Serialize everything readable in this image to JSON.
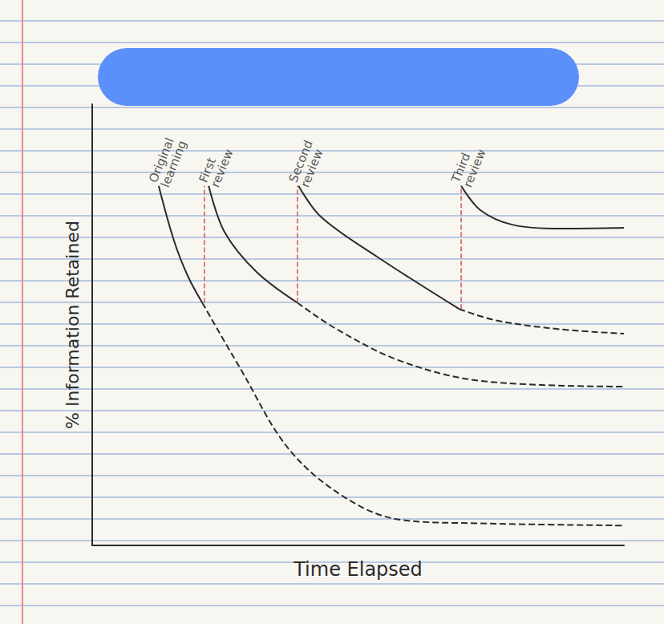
{
  "chart_data": {
    "type": "line",
    "x_label": "Time Elapsed",
    "y_label": "% Information Retained",
    "xlim": [
      0,
      100
    ],
    "ylim": [
      0,
      100
    ],
    "tick_labels": false,
    "grid": false,
    "series": [
      {
        "color": "#2b2b2b",
        "line_style": "solid",
        "x": [
          12.5,
          15.4,
          18,
          20.7
        ],
        "values": [
          81.5,
          69,
          61,
          55
        ]
      },
      {
        "color": "#2b2b2b",
        "line_style": "dashed",
        "x": [
          20.7,
          27.9,
          37,
          47.5,
          58,
          73,
          100
        ],
        "values": [
          55,
          40,
          21.8,
          10.9,
          5.8,
          5,
          4.5
        ]
      },
      {
        "color": "#2b2b2b",
        "line_style": "solid",
        "x": [
          21.9,
          24.9,
          30.9,
          38.6
        ],
        "values": [
          81.5,
          71,
          62,
          55
        ]
      },
      {
        "color": "#2b2b2b",
        "line_style": "dashed",
        "x": [
          38.6,
          46,
          58,
          73,
          100
        ],
        "values": [
          55,
          49,
          41.8,
          37.3,
          36
        ]
      },
      {
        "color": "#2b2b2b",
        "line_style": "solid",
        "x": [
          38.8,
          43,
          53.5,
          69
        ],
        "values": [
          81.5,
          74.5,
          65.5,
          53.6
        ]
      },
      {
        "color": "#2b2b2b",
        "line_style": "dashed",
        "x": [
          69,
          76,
          88,
          100
        ],
        "values": [
          53.6,
          51,
          49,
          48
        ]
      },
      {
        "color": "#2b2b2b",
        "line_style": "solid",
        "x": [
          69.4,
          73,
          79,
          88,
          100
        ],
        "values": [
          81.5,
          76,
          72.7,
          71.8,
          72
        ]
      }
    ],
    "review_lines": {
      "color": "#d9534f",
      "line_style": "dashed",
      "lines": [
        {
          "x": 21.1,
          "y_from": 55,
          "y_to": 81.5
        },
        {
          "x": 38.6,
          "y_from": 55,
          "y_to": 81.5
        },
        {
          "x": 69.4,
          "y_from": 53.6,
          "y_to": 81.5
        }
      ]
    },
    "annotations": [
      {
        "text": "Original learning",
        "x": 12.5,
        "y": 81.5
      },
      {
        "text": "First review",
        "x": 21.9,
        "y": 81.5
      },
      {
        "text": "Second review",
        "x": 38.8,
        "y": 81.5
      },
      {
        "text": "Third review",
        "x": 69.4,
        "y": 81.5
      }
    ]
  }
}
